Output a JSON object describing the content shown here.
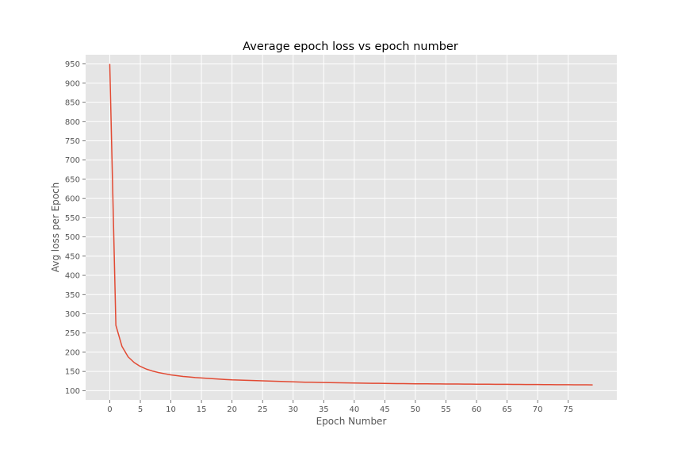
{
  "chart_data": {
    "type": "line",
    "title": "Average epoch loss vs epoch number",
    "xlabel": "Epoch Number",
    "ylabel": "Avg loss per Epoch",
    "xlim": [
      -3.95,
      82.95
    ],
    "ylim": [
      76,
      974
    ],
    "xticks": [
      0,
      5,
      10,
      15,
      20,
      25,
      30,
      35,
      40,
      45,
      50,
      55,
      60,
      65,
      70,
      75
    ],
    "yticks": [
      100,
      150,
      200,
      250,
      300,
      350,
      400,
      450,
      500,
      550,
      600,
      650,
      700,
      750,
      800,
      850,
      900,
      950
    ],
    "grid": true,
    "style": {
      "background": "#e5e5e5",
      "grid_color": "#ffffff",
      "line_color": "#e24a33"
    },
    "series": [
      {
        "x": [
          0,
          1,
          2,
          3,
          4,
          5,
          6,
          7,
          8,
          9,
          10,
          11,
          12,
          13,
          14,
          15,
          16,
          17,
          18,
          19,
          20,
          21,
          22,
          23,
          24,
          25,
          26,
          27,
          28,
          29,
          30,
          31,
          32,
          33,
          34,
          35,
          36,
          37,
          38,
          39,
          40,
          41,
          42,
          43,
          44,
          45,
          46,
          47,
          48,
          49,
          50,
          51,
          52,
          53,
          54,
          55,
          56,
          57,
          58,
          59,
          60,
          61,
          62,
          63,
          64,
          65,
          66,
          67,
          68,
          69,
          70,
          71,
          72,
          73,
          74,
          75,
          76,
          77,
          78,
          79
        ],
        "values": [
          950,
          270,
          215,
          188,
          173,
          163,
          156,
          151,
          147,
          144,
          141,
          139,
          137,
          135.5,
          134,
          133,
          132,
          131,
          130,
          129,
          128,
          127.5,
          127,
          126.5,
          126,
          125.5,
          125,
          124.5,
          124,
          123.5,
          123,
          122.5,
          122,
          121.8,
          121.5,
          121.2,
          121,
          120.7,
          120.4,
          120.1,
          119.8,
          119.6,
          119.4,
          119.2,
          119,
          118.8,
          118.6,
          118.4,
          118.2,
          118,
          117.9,
          117.8,
          117.7,
          117.6,
          117.5,
          117.4,
          117.3,
          117.2,
          117.1,
          117,
          116.9,
          116.8,
          116.7,
          116.6,
          116.5,
          116.4,
          116.3,
          116.2,
          116.1,
          116,
          115.9,
          115.8,
          115.7,
          115.6,
          115.5,
          115.4,
          115.3,
          115.2,
          115.1,
          115
        ]
      }
    ]
  }
}
